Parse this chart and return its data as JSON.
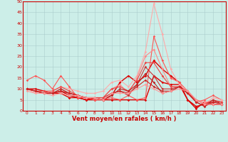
{
  "xlabel": "Vent moyen/en rafales ( km/h )",
  "xlim": [
    -0.5,
    23.5
  ],
  "ylim": [
    0,
    50
  ],
  "yticks": [
    0,
    5,
    10,
    15,
    20,
    25,
    30,
    35,
    40,
    45,
    50
  ],
  "xticks": [
    0,
    1,
    2,
    3,
    4,
    5,
    6,
    7,
    8,
    9,
    10,
    11,
    12,
    13,
    14,
    15,
    16,
    17,
    18,
    19,
    20,
    21,
    22,
    23
  ],
  "background_color": "#cceee8",
  "grid_color": "#aacccc",
  "series": [
    {
      "x": [
        0,
        1,
        2,
        3,
        4,
        5,
        6,
        7,
        8,
        9,
        10,
        11,
        12,
        13,
        14,
        15,
        16,
        17,
        18,
        19,
        20,
        21,
        22,
        23
      ],
      "y": [
        10,
        10,
        9,
        8,
        8,
        6,
        6,
        5,
        5,
        5,
        7,
        13,
        16,
        13,
        16,
        23,
        19,
        16,
        13,
        5,
        2,
        3,
        3,
        3
      ],
      "color": "#dd0000",
      "alpha": 1.0,
      "lw": 1.0
    },
    {
      "x": [
        0,
        1,
        2,
        3,
        4,
        5,
        6,
        7,
        8,
        9,
        10,
        11,
        12,
        13,
        14,
        15,
        16,
        17,
        18,
        19,
        20,
        21,
        22,
        23
      ],
      "y": [
        10,
        9,
        8,
        8,
        9,
        7,
        6,
        5,
        6,
        5,
        5,
        5,
        5,
        5,
        5,
        16,
        13,
        12,
        12,
        5,
        1,
        4,
        3,
        3
      ],
      "color": "#dd0000",
      "alpha": 1.0,
      "lw": 1.0
    },
    {
      "x": [
        0,
        1,
        2,
        3,
        4,
        5,
        6,
        7,
        8,
        9,
        10,
        11,
        12,
        13,
        14,
        15,
        16,
        17,
        18,
        19,
        20,
        21,
        22,
        23
      ],
      "y": [
        14,
        16,
        14,
        10,
        16,
        11,
        6,
        6,
        5,
        5,
        6,
        5,
        7,
        5,
        6,
        34,
        23,
        15,
        13,
        9,
        4,
        5,
        7,
        5
      ],
      "color": "#ff5555",
      "alpha": 1.0,
      "lw": 0.8
    },
    {
      "x": [
        0,
        1,
        2,
        3,
        4,
        5,
        6,
        7,
        8,
        9,
        10,
        11,
        12,
        13,
        14,
        15,
        16,
        17,
        18,
        19,
        20,
        21,
        22,
        23
      ],
      "y": [
        10,
        8,
        8,
        9,
        11,
        10,
        9,
        8,
        8,
        9,
        13,
        14,
        11,
        16,
        27,
        49,
        35,
        19,
        12,
        9,
        5,
        3,
        6,
        5
      ],
      "color": "#ffaaaa",
      "alpha": 1.0,
      "lw": 0.8
    },
    {
      "x": [
        0,
        1,
        2,
        3,
        4,
        5,
        6,
        7,
        8,
        9,
        10,
        11,
        12,
        13,
        14,
        15,
        16,
        17,
        18,
        19,
        20,
        21,
        22,
        23
      ],
      "y": [
        10,
        9,
        8,
        8,
        10,
        8,
        7,
        6,
        6,
        6,
        10,
        12,
        8,
        15,
        25,
        28,
        19,
        11,
        11,
        8,
        5,
        4,
        4,
        4
      ],
      "color": "#ff8888",
      "alpha": 1.0,
      "lw": 0.8
    },
    {
      "x": [
        0,
        1,
        2,
        3,
        4,
        5,
        6,
        7,
        8,
        9,
        10,
        11,
        12,
        13,
        14,
        15,
        16,
        17,
        18,
        19,
        20,
        21,
        22,
        23
      ],
      "y": [
        10,
        9,
        8,
        8,
        9,
        8,
        7,
        6,
        6,
        6,
        8,
        9,
        7,
        12,
        20,
        16,
        10,
        10,
        11,
        8,
        5,
        3,
        4,
        4
      ],
      "color": "#cc3333",
      "alpha": 1.0,
      "lw": 0.8
    },
    {
      "x": [
        0,
        1,
        2,
        3,
        4,
        5,
        6,
        7,
        8,
        9,
        10,
        11,
        12,
        13,
        14,
        15,
        16,
        17,
        18,
        19,
        20,
        21,
        22,
        23
      ],
      "y": [
        10,
        9,
        9,
        9,
        11,
        9,
        7,
        6,
        6,
        6,
        10,
        11,
        9,
        14,
        22,
        22,
        16,
        11,
        11,
        9,
        5,
        3,
        5,
        4
      ],
      "color": "#ee4444",
      "alpha": 1.0,
      "lw": 0.8
    },
    {
      "x": [
        0,
        1,
        2,
        3,
        4,
        5,
        6,
        7,
        8,
        9,
        10,
        11,
        12,
        13,
        14,
        15,
        16,
        17,
        18,
        19,
        20,
        21,
        22,
        23
      ],
      "y": [
        10,
        9,
        8,
        8,
        10,
        8,
        7,
        6,
        6,
        5,
        7,
        10,
        9,
        12,
        17,
        13,
        8,
        9,
        11,
        8,
        4,
        2,
        5,
        3
      ],
      "color": "#bb2222",
      "alpha": 1.0,
      "lw": 0.8
    },
    {
      "x": [
        0,
        1,
        2,
        3,
        4,
        5,
        6,
        7,
        8,
        9,
        10,
        11,
        12,
        13,
        14,
        15,
        16,
        17,
        18,
        19,
        20,
        21,
        22,
        23
      ],
      "y": [
        10,
        9,
        8,
        8,
        9,
        8,
        7,
        6,
        6,
        5,
        8,
        9,
        8,
        11,
        14,
        11,
        9,
        9,
        11,
        8,
        4,
        2,
        4,
        3
      ],
      "color": "#cc2222",
      "alpha": 1.0,
      "lw": 0.8
    },
    {
      "x": [
        0,
        1,
        2,
        3,
        4,
        5,
        6,
        7,
        8,
        9,
        10,
        11,
        12,
        13,
        14,
        15,
        16,
        17,
        18,
        19,
        20,
        21,
        22,
        23
      ],
      "y": [
        9,
        8,
        8,
        7,
        8,
        7,
        7,
        6,
        6,
        5,
        8,
        8,
        8,
        10,
        12,
        10,
        8,
        9,
        10,
        9,
        5,
        3,
        3,
        3
      ],
      "color": "#ff9999",
      "alpha": 1.0,
      "lw": 0.8
    }
  ]
}
